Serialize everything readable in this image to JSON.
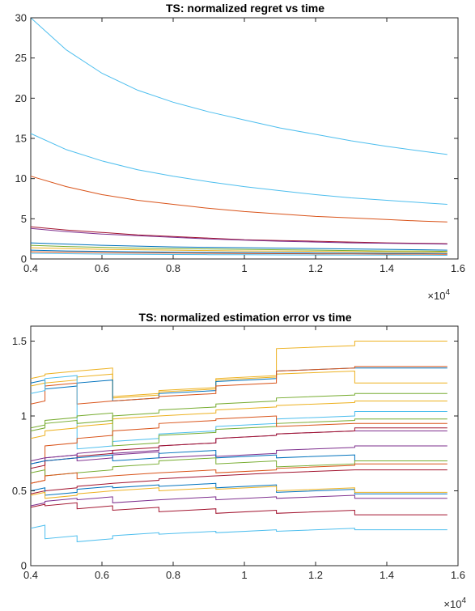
{
  "chart_data": [
    {
      "type": "line",
      "title": "TS: normalized regret vs time",
      "xlabel": "",
      "ylabel": "",
      "xlim": [
        4000,
        16000
      ],
      "ylim": [
        0,
        30
      ],
      "x_ticks": [
        "0.4",
        "0.6",
        "0.8",
        "1",
        "1.2",
        "1.4",
        "1.6"
      ],
      "y_ticks": [
        "0",
        "5",
        "10",
        "15",
        "20",
        "25",
        "30"
      ],
      "x_exponent": {
        "base": "×10",
        "exp": "4"
      },
      "grid": false,
      "x": [
        4000,
        5000,
        6000,
        7000,
        8000,
        9000,
        10000,
        11000,
        12000,
        13000,
        14000,
        15000,
        15700
      ],
      "series": [
        {
          "color": "#4DBEEE",
          "values": [
            30.0,
            26.0,
            23.1,
            21.0,
            19.5,
            18.3,
            17.3,
            16.3,
            15.5,
            14.7,
            14.0,
            13.4,
            13.0
          ]
        },
        {
          "color": "#4DBEEE",
          "values": [
            15.6,
            13.6,
            12.2,
            11.1,
            10.3,
            9.6,
            9.0,
            8.5,
            8.0,
            7.6,
            7.3,
            7.0,
            6.8
          ]
        },
        {
          "color": "#D95319",
          "values": [
            10.3,
            9.0,
            8.0,
            7.3,
            6.8,
            6.3,
            5.9,
            5.6,
            5.3,
            5.1,
            4.9,
            4.7,
            4.6
          ]
        },
        {
          "color": "#A2142F",
          "values": [
            4.0,
            3.6,
            3.3,
            3.0,
            2.8,
            2.6,
            2.4,
            2.3,
            2.2,
            2.1,
            2.0,
            1.95,
            1.9
          ]
        },
        {
          "color": "#7E2F8E",
          "values": [
            3.8,
            3.4,
            3.1,
            2.9,
            2.7,
            2.5,
            2.35,
            2.2,
            2.1,
            2.0,
            1.95,
            1.9,
            1.85
          ]
        },
        {
          "color": "#0072BD",
          "values": [
            2.0,
            1.85,
            1.7,
            1.6,
            1.5,
            1.45,
            1.4,
            1.35,
            1.3,
            1.25,
            1.2,
            1.15,
            1.1
          ]
        },
        {
          "color": "#77AC30",
          "values": [
            1.7,
            1.55,
            1.45,
            1.35,
            1.3,
            1.25,
            1.2,
            1.15,
            1.1,
            1.05,
            1.0,
            1.0,
            0.95
          ]
        },
        {
          "color": "#EDB120",
          "values": [
            1.4,
            1.3,
            1.2,
            1.15,
            1.1,
            1.05,
            1.0,
            0.98,
            0.95,
            0.92,
            0.9,
            0.88,
            0.85
          ]
        },
        {
          "color": "#0072BD",
          "values": [
            1.1,
            1.0,
            0.95,
            0.9,
            0.85,
            0.82,
            0.8,
            0.78,
            0.75,
            0.72,
            0.7,
            0.7,
            0.68
          ]
        },
        {
          "color": "#D95319",
          "values": [
            0.9,
            0.85,
            0.8,
            0.75,
            0.72,
            0.7,
            0.68,
            0.65,
            0.63,
            0.62,
            0.6,
            0.6,
            0.58
          ]
        },
        {
          "color": "#4DBEEE",
          "values": [
            0.7,
            0.65,
            0.6,
            0.57,
            0.55,
            0.53,
            0.52,
            0.5,
            0.49,
            0.48,
            0.47,
            0.46,
            0.45
          ]
        }
      ]
    },
    {
      "type": "line",
      "title": "TS: normalized estimation error vs time",
      "xlabel": "",
      "ylabel": "",
      "xlim": [
        4000,
        16000
      ],
      "ylim": [
        0,
        1.6
      ],
      "x_ticks": [
        "0.4",
        "0.6",
        "0.8",
        "1",
        "1.2",
        "1.4",
        "1.6"
      ],
      "y_ticks": [
        "0",
        "0.5",
        "1",
        "1.5"
      ],
      "x_exponent": {
        "base": "×10",
        "exp": "4"
      },
      "grid": false,
      "segment_boundaries": [
        4000,
        4400,
        5300,
        6300,
        7600,
        9200,
        10900,
        13100,
        15700
      ],
      "series": [
        {
          "color": "#EDB120",
          "values": [
            1.25,
            1.28,
            1.3,
            1.13,
            1.17,
            1.25,
            1.45,
            1.5,
            1.45
          ]
        },
        {
          "color": "#EDB120",
          "values": [
            1.2,
            1.22,
            1.26,
            1.12,
            1.16,
            1.24,
            1.28,
            1.22,
            1.42
          ]
        },
        {
          "color": "#0072BD",
          "values": [
            1.22,
            1.18,
            1.22,
            1.1,
            1.15,
            1.23,
            1.3,
            1.32,
            1.35
          ]
        },
        {
          "color": "#D95319",
          "values": [
            1.08,
            1.2,
            1.08,
            1.1,
            1.13,
            1.2,
            1.3,
            1.33,
            1.39
          ]
        },
        {
          "color": "#4DBEEE",
          "values": [
            1.15,
            1.25,
            0.78,
            0.83,
            0.88,
            0.93,
            0.98,
            1.03,
            1.2
          ]
        },
        {
          "color": "#77AC30",
          "values": [
            0.9,
            0.95,
            0.95,
            1.0,
            1.04,
            1.08,
            1.12,
            1.15,
            1.15
          ]
        },
        {
          "color": "#EDB120",
          "values": [
            0.85,
            0.9,
            0.93,
            0.98,
            1.0,
            1.04,
            1.07,
            1.1,
            1.11
          ]
        },
        {
          "color": "#77AC30",
          "values": [
            0.92,
            0.97,
            1.0,
            0.8,
            0.87,
            0.91,
            0.95,
            0.98,
            1.0
          ]
        },
        {
          "color": "#D95319",
          "values": [
            0.55,
            0.8,
            0.85,
            0.9,
            0.95,
            0.98,
            0.93,
            0.95,
            1.02
          ]
        },
        {
          "color": "#7E2F8E",
          "values": [
            0.7,
            0.72,
            0.75,
            0.75,
            0.8,
            0.85,
            0.88,
            0.9,
            0.9
          ]
        },
        {
          "color": "#A2142F",
          "values": [
            0.65,
            0.7,
            0.73,
            0.77,
            0.8,
            0.85,
            0.88,
            0.92,
            0.83
          ]
        },
        {
          "color": "#7E2F8E",
          "values": [
            0.68,
            0.72,
            0.7,
            0.74,
            0.72,
            0.73,
            0.77,
            0.8,
            0.84
          ]
        },
        {
          "color": "#0072BD",
          "values": [
            0.68,
            0.7,
            0.72,
            0.7,
            0.75,
            0.72,
            0.72,
            0.7,
            0.75
          ]
        },
        {
          "color": "#77AC30",
          "values": [
            0.62,
            0.6,
            0.62,
            0.66,
            0.7,
            0.68,
            0.66,
            0.7,
            0.76
          ]
        },
        {
          "color": "#D95319",
          "values": [
            0.55,
            0.6,
            0.58,
            0.6,
            0.62,
            0.62,
            0.65,
            0.68,
            0.72
          ]
        },
        {
          "color": "#A2142F",
          "values": [
            0.48,
            0.5,
            0.53,
            0.55,
            0.58,
            0.6,
            0.62,
            0.64,
            0.66
          ]
        },
        {
          "color": "#0072BD",
          "values": [
            0.5,
            0.47,
            0.51,
            0.52,
            0.53,
            0.52,
            0.49,
            0.48,
            0.48
          ]
        },
        {
          "color": "#EDB120",
          "values": [
            0.47,
            0.45,
            0.48,
            0.5,
            0.5,
            0.51,
            0.5,
            0.49,
            0.5
          ]
        },
        {
          "color": "#7E2F8E",
          "values": [
            0.4,
            0.43,
            0.44,
            0.42,
            0.44,
            0.44,
            0.45,
            0.45,
            0.46
          ]
        },
        {
          "color": "#A2142F",
          "values": [
            0.39,
            0.4,
            0.38,
            0.37,
            0.36,
            0.35,
            0.35,
            0.34,
            0.34
          ]
        },
        {
          "color": "#4DBEEE",
          "values": [
            0.25,
            0.18,
            0.16,
            0.2,
            0.21,
            0.22,
            0.23,
            0.24,
            0.24
          ]
        }
      ]
    }
  ]
}
